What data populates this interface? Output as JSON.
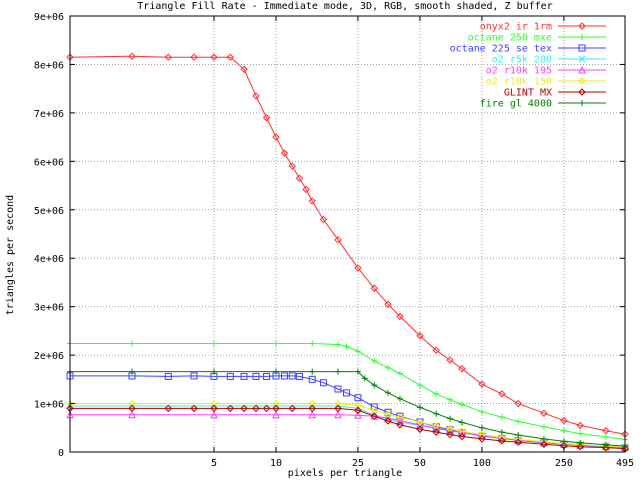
{
  "chart_data": {
    "type": "line",
    "title": "Triangle Fill Rate - Immediate mode, 3D, RGB, smooth shaded, Z buffer",
    "xlabel": "pixels per triangle",
    "ylabel": "triangles per second",
    "x_scale": "log",
    "xlim": [
      1,
      495
    ],
    "ylim": [
      0,
      9000000
    ],
    "x_ticks": [
      5,
      10,
      25,
      50,
      100,
      250,
      495
    ],
    "x_tick_labels": [
      "5",
      "10",
      "25",
      "50",
      "100",
      "250",
      "495"
    ],
    "y_ticks": [
      0,
      1000000,
      2000000,
      3000000,
      4000000,
      5000000,
      6000000,
      7000000,
      8000000,
      9000000
    ],
    "y_tick_labels": [
      "0",
      "1e+06",
      "2e+06",
      "3e+06",
      "4e+06",
      "5e+06",
      "6e+06",
      "7e+06",
      "8e+06",
      "9e+06"
    ],
    "grid": true,
    "legend_position": "top-right",
    "series": [
      {
        "name": "onyx2 ir 1rm",
        "color": "#ff3030",
        "marker": "diamond",
        "points": [
          [
            1,
            8150000
          ],
          [
            2,
            8170000
          ],
          [
            3,
            8150000
          ],
          [
            4,
            8150000
          ],
          [
            5,
            8150000
          ],
          [
            6,
            8150000
          ],
          [
            7,
            7900000
          ],
          [
            8,
            7350000
          ],
          [
            9,
            6900000
          ],
          [
            10,
            6500000
          ],
          [
            11,
            6170000
          ],
          [
            12,
            5900000
          ],
          [
            13,
            5650000
          ],
          [
            14,
            5420000
          ],
          [
            15,
            5180000
          ],
          [
            17,
            4800000
          ],
          [
            20,
            4380000
          ],
          [
            25,
            3800000
          ],
          [
            30,
            3380000
          ],
          [
            35,
            3050000
          ],
          [
            40,
            2800000
          ],
          [
            50,
            2400000
          ],
          [
            60,
            2100000
          ],
          [
            70,
            1900000
          ],
          [
            80,
            1720000
          ],
          [
            100,
            1400000
          ],
          [
            125,
            1200000
          ],
          [
            150,
            1000000
          ],
          [
            200,
            800000
          ],
          [
            250,
            650000
          ],
          [
            300,
            550000
          ],
          [
            400,
            440000
          ],
          [
            495,
            370000
          ]
        ]
      },
      {
        "name": "octane 250 mxe",
        "color": "#30ff30",
        "marker": "plus",
        "points": [
          [
            1,
            2240000
          ],
          [
            2,
            2240000
          ],
          [
            5,
            2240000
          ],
          [
            10,
            2240000
          ],
          [
            15,
            2240000
          ],
          [
            20,
            2220000
          ],
          [
            22,
            2180000
          ],
          [
            25,
            2080000
          ],
          [
            30,
            1880000
          ],
          [
            35,
            1740000
          ],
          [
            40,
            1620000
          ],
          [
            50,
            1380000
          ],
          [
            60,
            1200000
          ],
          [
            70,
            1080000
          ],
          [
            80,
            980000
          ],
          [
            100,
            830000
          ],
          [
            125,
            720000
          ],
          [
            150,
            630000
          ],
          [
            200,
            520000
          ],
          [
            250,
            440000
          ],
          [
            300,
            380000
          ],
          [
            400,
            310000
          ],
          [
            495,
            260000
          ]
        ]
      },
      {
        "name": "octane 225 se tex",
        "color": "#4040ff",
        "marker": "square",
        "points": [
          [
            1,
            1570000
          ],
          [
            2,
            1570000
          ],
          [
            3,
            1560000
          ],
          [
            4,
            1570000
          ],
          [
            5,
            1560000
          ],
          [
            6,
            1560000
          ],
          [
            7,
            1560000
          ],
          [
            8,
            1560000
          ],
          [
            9,
            1560000
          ],
          [
            10,
            1570000
          ],
          [
            11,
            1570000
          ],
          [
            12,
            1570000
          ],
          [
            13,
            1560000
          ],
          [
            15,
            1500000
          ],
          [
            17,
            1430000
          ],
          [
            20,
            1300000
          ],
          [
            22,
            1220000
          ],
          [
            25,
            1120000
          ],
          [
            30,
            930000
          ],
          [
            35,
            820000
          ],
          [
            40,
            740000
          ],
          [
            50,
            620000
          ],
          [
            60,
            520000
          ],
          [
            70,
            460000
          ],
          [
            80,
            400000
          ],
          [
            100,
            330000
          ],
          [
            125,
            280000
          ],
          [
            150,
            240000
          ],
          [
            200,
            190000
          ],
          [
            250,
            160000
          ],
          [
            300,
            140000
          ],
          [
            400,
            110000
          ],
          [
            495,
            90000
          ]
        ]
      },
      {
        "name": "o2 r5k 200",
        "color": "#30f0f0",
        "marker": "cross",
        "points": [
          [
            1,
            950000
          ],
          [
            2,
            950000
          ],
          [
            5,
            950000
          ],
          [
            10,
            950000
          ],
          [
            15,
            950000
          ],
          [
            20,
            950000
          ],
          [
            25,
            900000
          ],
          [
            30,
            760000
          ],
          [
            35,
            680000
          ],
          [
            40,
            620000
          ],
          [
            50,
            540000
          ],
          [
            60,
            480000
          ],
          [
            70,
            440000
          ],
          [
            80,
            400000
          ],
          [
            100,
            340000
          ],
          [
            125,
            290000
          ],
          [
            150,
            250000
          ],
          [
            200,
            200000
          ],
          [
            250,
            170000
          ],
          [
            300,
            150000
          ],
          [
            400,
            120000
          ],
          [
            495,
            100000
          ]
        ]
      },
      {
        "name": "o2 r10k 195",
        "color": "#ff40ff",
        "marker": "triangle",
        "points": [
          [
            1,
            770000
          ],
          [
            2,
            770000
          ],
          [
            5,
            770000
          ],
          [
            10,
            770000
          ],
          [
            15,
            770000
          ],
          [
            20,
            770000
          ],
          [
            25,
            760000
          ],
          [
            30,
            740000
          ],
          [
            35,
            700000
          ],
          [
            40,
            650000
          ],
          [
            50,
            560000
          ],
          [
            60,
            490000
          ],
          [
            70,
            440000
          ],
          [
            80,
            400000
          ],
          [
            100,
            340000
          ],
          [
            125,
            290000
          ],
          [
            150,
            250000
          ],
          [
            200,
            200000
          ],
          [
            250,
            170000
          ],
          [
            300,
            150000
          ],
          [
            400,
            120000
          ],
          [
            495,
            100000
          ]
        ]
      },
      {
        "name": "o2 r10k 150",
        "color": "#f0f000",
        "marker": "diamond",
        "points": [
          [
            1,
            1000000
          ],
          [
            2,
            1000000
          ],
          [
            5,
            1000000
          ],
          [
            10,
            1000000
          ],
          [
            15,
            1000000
          ],
          [
            20,
            1000000
          ],
          [
            25,
            960000
          ],
          [
            30,
            860000
          ],
          [
            35,
            780000
          ],
          [
            40,
            720000
          ],
          [
            50,
            620000
          ],
          [
            60,
            540000
          ],
          [
            70,
            480000
          ],
          [
            80,
            430000
          ],
          [
            100,
            360000
          ],
          [
            125,
            300000
          ],
          [
            150,
            260000
          ],
          [
            200,
            210000
          ],
          [
            250,
            170000
          ],
          [
            300,
            150000
          ],
          [
            400,
            120000
          ],
          [
            495,
            100000
          ]
        ]
      },
      {
        "name": "GLINT MX",
        "color": "#b00000",
        "marker": "diamond",
        "points": [
          [
            1,
            900000
          ],
          [
            2,
            900000
          ],
          [
            3,
            900000
          ],
          [
            4,
            900000
          ],
          [
            5,
            900000
          ],
          [
            6,
            900000
          ],
          [
            7,
            900000
          ],
          [
            8,
            900000
          ],
          [
            9,
            900000
          ],
          [
            10,
            900000
          ],
          [
            12,
            900000
          ],
          [
            15,
            900000
          ],
          [
            20,
            900000
          ],
          [
            25,
            860000
          ],
          [
            30,
            740000
          ],
          [
            35,
            640000
          ],
          [
            40,
            560000
          ],
          [
            50,
            470000
          ],
          [
            60,
            410000
          ],
          [
            70,
            360000
          ],
          [
            80,
            320000
          ],
          [
            100,
            270000
          ],
          [
            125,
            230000
          ],
          [
            150,
            200000
          ],
          [
            200,
            160000
          ],
          [
            250,
            130000
          ],
          [
            300,
            110000
          ],
          [
            400,
            90000
          ],
          [
            495,
            70000
          ]
        ]
      },
      {
        "name": "fire gl 4000",
        "color": "#008000",
        "marker": "plus",
        "points": [
          [
            1,
            1660000
          ],
          [
            2,
            1660000
          ],
          [
            5,
            1660000
          ],
          [
            10,
            1660000
          ],
          [
            15,
            1660000
          ],
          [
            20,
            1660000
          ],
          [
            25,
            1660000
          ],
          [
            27,
            1520000
          ],
          [
            30,
            1380000
          ],
          [
            35,
            1220000
          ],
          [
            40,
            1100000
          ],
          [
            50,
            920000
          ],
          [
            60,
            790000
          ],
          [
            70,
            690000
          ],
          [
            80,
            610000
          ],
          [
            100,
            500000
          ],
          [
            125,
            410000
          ],
          [
            150,
            350000
          ],
          [
            200,
            270000
          ],
          [
            250,
            220000
          ],
          [
            300,
            190000
          ],
          [
            400,
            150000
          ],
          [
            495,
            120000
          ]
        ]
      }
    ]
  }
}
